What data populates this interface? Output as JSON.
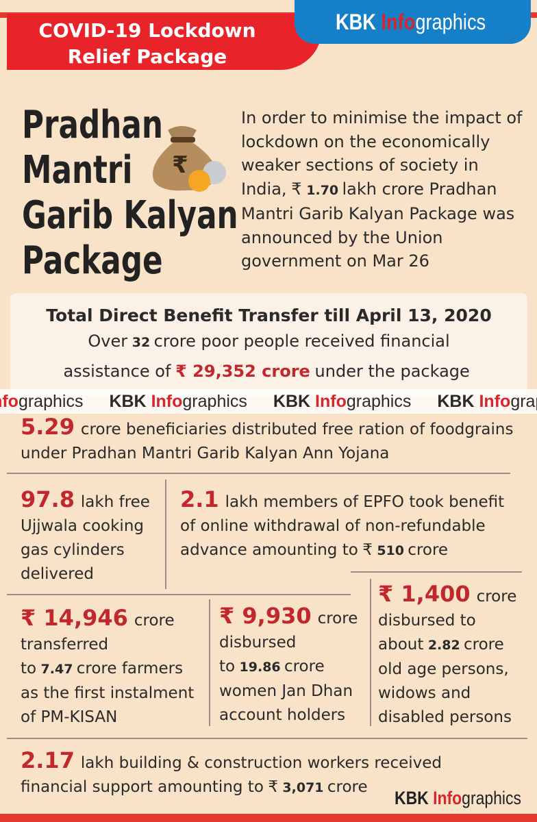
{
  "header": {
    "banner": [
      "COVID-19 Lockdown",
      "Relief Package"
    ],
    "brand": {
      "kbk": "KBK",
      "info": "Info",
      "graphics": "graphics"
    }
  },
  "title": [
    "Pradhan",
    "Mantri",
    "Garib Kalyan",
    "Package"
  ],
  "intro": [
    {
      "t": "In order to minimise the impact of lockdown on the economically weaker sections of society in India,"
    },
    {
      "t": "₹"
    },
    {
      "t": "1.70",
      "style": "bold"
    },
    {
      "t": "lakh crore Pradhan Mantri Garib Kalyan Package was announced by the Union government on Mar 26"
    }
  ],
  "summary": {
    "heading": "Total Direct Benefit Transfer till April 13, 2020",
    "text": [
      {
        "t": "Over"
      },
      {
        "t": "32",
        "style": "bold"
      },
      {
        "t": "crore poor people received financial assistance of"
      },
      {
        "t": "₹ 29,352 crore",
        "style": "red"
      },
      {
        "t": "under the package"
      }
    ]
  },
  "blocks": {
    "ration": [
      {
        "t": "5.29",
        "style": "big"
      },
      {
        "t": "crore beneficiaries distributed free ration of foodgrains under Pradhan Mantri Garib Kalyan Ann Yojana"
      }
    ],
    "lpg": [
      {
        "t": "97.8",
        "style": "big"
      },
      {
        "t": "lakh free Ujjwala cooking gas cylinders delivered"
      }
    ],
    "epfo": [
      {
        "t": "2.1",
        "style": "big"
      },
      {
        "t": "lakh members of EPFO took benefit of online withdrawal of non-refundable advance amounting to"
      },
      {
        "t": "₹"
      },
      {
        "t": "510",
        "style": "bold"
      },
      {
        "t": "crore"
      }
    ],
    "farmers": [
      {
        "t": "₹ 14,946",
        "style": "big"
      },
      {
        "t": "crore transferred to"
      },
      {
        "t": "7.47",
        "style": "bold"
      },
      {
        "t": "crore farmers as the first instalment of PM-KISAN"
      }
    ],
    "women": [
      {
        "t": "₹ 9,930",
        "style": "big"
      },
      {
        "t": "crore disbursed to"
      },
      {
        "t": "19.86",
        "style": "bold"
      },
      {
        "t": "crore women Jan Dhan account holders"
      }
    ],
    "oldage": [
      {
        "t": "₹ 1,400",
        "style": "big"
      },
      {
        "t": "crore disbursed to about"
      },
      {
        "t": "2.82",
        "style": "bold"
      },
      {
        "t": "crore old age persons, widows and disabled persons"
      }
    ],
    "construction": [
      {
        "t": "2.17",
        "style": "big"
      },
      {
        "t": "lakh building & construction workers received financial support amounting to"
      },
      {
        "t": "₹"
      },
      {
        "t": "3,071",
        "style": "bold"
      },
      {
        "t": "crore"
      }
    ]
  }
}
